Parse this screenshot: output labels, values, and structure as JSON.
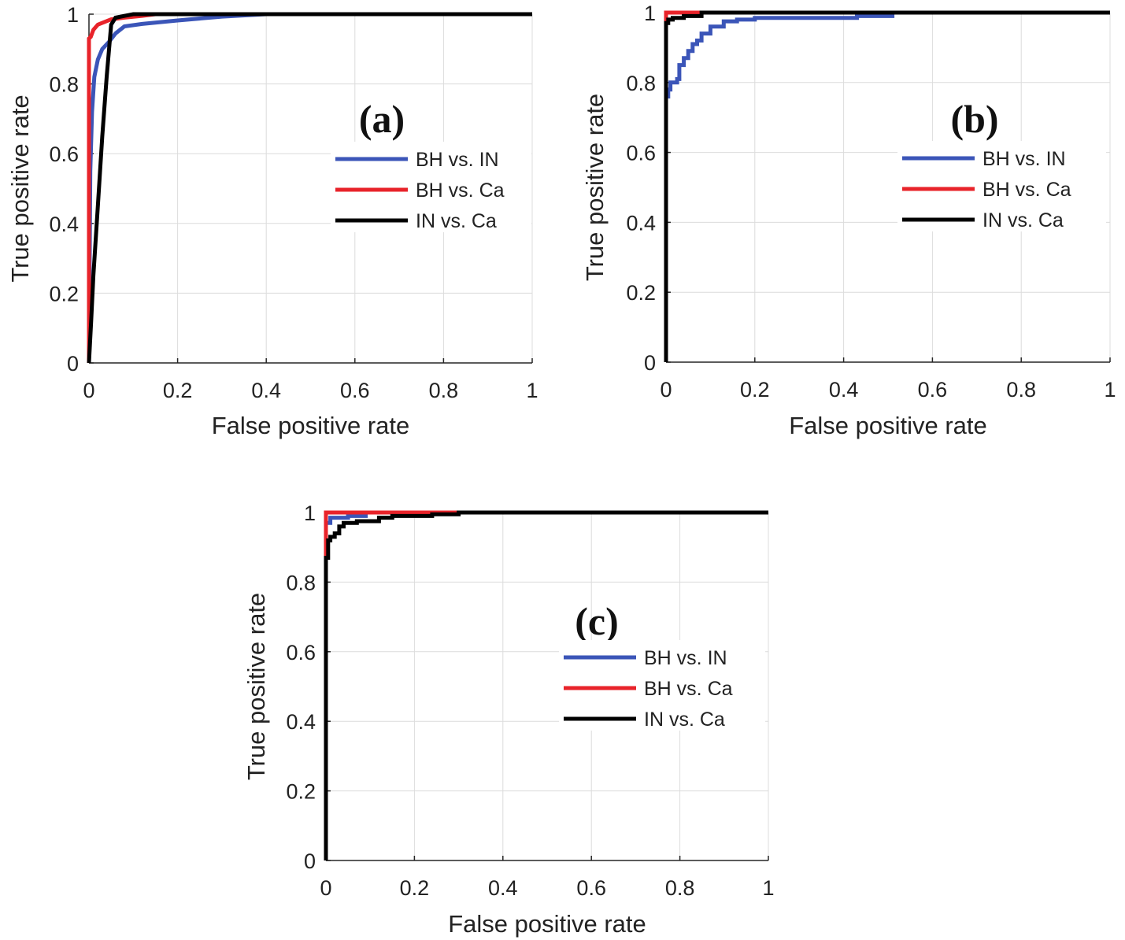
{
  "chart_data": [
    {
      "type": "line",
      "panel_label": "(a)",
      "xlabel": "False positive rate",
      "ylabel": "True positive rate",
      "xlim": [
        0,
        1
      ],
      "ylim": [
        0,
        1
      ],
      "xticks": [
        "0",
        "0.2",
        "0.4",
        "0.6",
        "0.8",
        "1"
      ],
      "yticks": [
        "0",
        "0.2",
        "0.4",
        "0.6",
        "0.8",
        "1"
      ],
      "grid": true,
      "legend_position": "right",
      "series": [
        {
          "name": "BH vs. IN",
          "color": "#3b55b8",
          "x": [
            0,
            0.003,
            0.007,
            0.012,
            0.02,
            0.03,
            0.045,
            0.06,
            0.08,
            0.12,
            0.2,
            0.3,
            0.4,
            1
          ],
          "y": [
            0,
            0.55,
            0.72,
            0.82,
            0.87,
            0.9,
            0.92,
            0.945,
            0.965,
            0.972,
            0.982,
            0.993,
            1,
            1
          ]
        },
        {
          "name": "BH vs. Ca",
          "color": "#e8232a",
          "x": [
            0,
            0,
            0.004,
            0.01,
            0.02,
            0.03,
            0.05,
            0.08,
            0.12,
            0.15,
            1
          ],
          "y": [
            0,
            0.93,
            0.935,
            0.955,
            0.97,
            0.975,
            0.985,
            0.99,
            0.995,
            1,
            1
          ],
          "x_note": ""
        },
        {
          "name": "IN vs. Ca",
          "color": "#000000",
          "x": [
            0,
            0.005,
            0.01,
            0.02,
            0.03,
            0.04,
            0.05,
            0.06,
            0.08,
            0.1,
            1
          ],
          "y": [
            0,
            0.12,
            0.25,
            0.45,
            0.65,
            0.82,
            0.97,
            0.99,
            0.995,
            1,
            1
          ]
        }
      ]
    },
    {
      "type": "line",
      "panel_label": "(b)",
      "xlabel": "False positive rate",
      "ylabel": "True positive rate",
      "xlim": [
        0,
        1
      ],
      "ylim": [
        0,
        1
      ],
      "xticks": [
        "0",
        "0.2",
        "0.4",
        "0.6",
        "0.8",
        "1"
      ],
      "yticks": [
        "0",
        "0.2",
        "0.4",
        "0.6",
        "0.8",
        "1"
      ],
      "grid": true,
      "legend_position": "right",
      "series": [
        {
          "name": "BH vs. IN",
          "color": "#3b55b8",
          "x": [
            0,
            0,
            0.005,
            0.005,
            0.01,
            0.01,
            0.025,
            0.025,
            0.03,
            0.03,
            0.04,
            0.04,
            0.05,
            0.05,
            0.06,
            0.06,
            0.07,
            0.07,
            0.08,
            0.08,
            0.1,
            0.1,
            0.13,
            0.13,
            0.16,
            0.16,
            0.2,
            0.2,
            0.43,
            0.43,
            0.51,
            0.51,
            1
          ],
          "y": [
            0,
            0.76,
            0.76,
            0.78,
            0.78,
            0.8,
            0.8,
            0.81,
            0.81,
            0.85,
            0.85,
            0.87,
            0.87,
            0.89,
            0.89,
            0.91,
            0.91,
            0.92,
            0.92,
            0.94,
            0.94,
            0.96,
            0.96,
            0.975,
            0.975,
            0.98,
            0.98,
            0.985,
            0.985,
            0.99,
            0.99,
            1,
            1
          ]
        },
        {
          "name": "BH vs. Ca",
          "color": "#e8232a",
          "x": [
            0,
            0,
            0.08,
            1
          ],
          "y": [
            0,
            1,
            1,
            1
          ]
        },
        {
          "name": "IN vs. Ca",
          "color": "#000000",
          "x": [
            0,
            0,
            0.005,
            0.005,
            0.015,
            0.015,
            0.04,
            0.04,
            0.08,
            0.08,
            1
          ],
          "y": [
            0,
            0.97,
            0.97,
            0.98,
            0.98,
            0.985,
            0.985,
            0.99,
            0.99,
            1,
            1
          ]
        }
      ]
    },
    {
      "type": "line",
      "panel_label": "(c)",
      "xlabel": "False positive rate",
      "ylabel": "True positive rate",
      "xlim": [
        0,
        1
      ],
      "ylim": [
        0,
        1
      ],
      "xticks": [
        "0",
        "0.2",
        "0.4",
        "0.6",
        "0.8",
        "1"
      ],
      "yticks": [
        "0",
        "0.2",
        "0.4",
        "0.6",
        "0.8",
        "1"
      ],
      "grid": true,
      "legend_position": "right",
      "series": [
        {
          "name": "BH vs. IN",
          "color": "#3b55b8",
          "x": [
            0,
            0,
            0.01,
            0.01,
            0.05,
            0.05,
            0.09,
            0.09,
            1
          ],
          "y": [
            0,
            0.97,
            0.97,
            0.985,
            0.985,
            0.99,
            0.99,
            1,
            1
          ]
        },
        {
          "name": "BH vs. Ca",
          "color": "#e8232a",
          "x": [
            0,
            0,
            0.28,
            1
          ],
          "y": [
            0,
            1,
            1,
            1
          ]
        },
        {
          "name": "IN vs. Ca",
          "color": "#000000",
          "x": [
            0,
            0,
            0.005,
            0.005,
            0.01,
            0.01,
            0.02,
            0.02,
            0.03,
            0.03,
            0.04,
            0.04,
            0.07,
            0.07,
            0.12,
            0.12,
            0.15,
            0.15,
            0.24,
            0.24,
            0.3,
            0.3,
            1
          ],
          "y": [
            0,
            0.87,
            0.87,
            0.92,
            0.92,
            0.93,
            0.93,
            0.94,
            0.94,
            0.96,
            0.96,
            0.97,
            0.97,
            0.975,
            0.975,
            0.985,
            0.985,
            0.99,
            0.99,
            0.995,
            0.995,
            1,
            1
          ]
        }
      ]
    }
  ]
}
